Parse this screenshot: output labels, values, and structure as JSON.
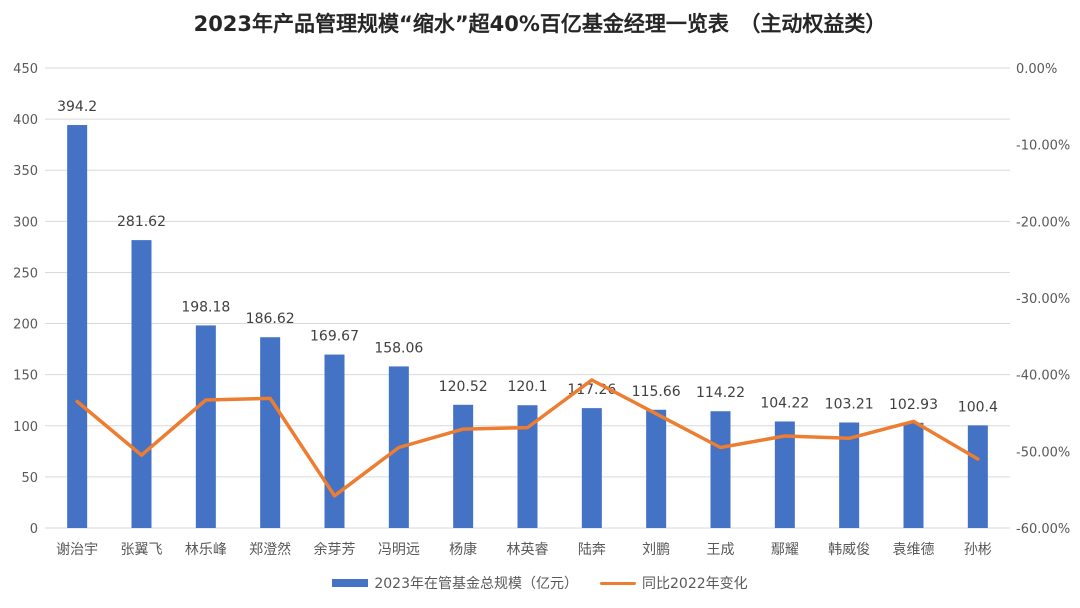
{
  "chart_data": {
    "type": "bar",
    "title": "2023年产品管理规模“缩水”超40%百亿基金经理一览表　（主动权益类）",
    "categories": [
      "谢治宇",
      "张翼飞",
      "林乐峰",
      "郑澄然",
      "余芽芳",
      "冯明远",
      "杨康",
      "林英睿",
      "陆奔",
      "刘鹏",
      "王成",
      "鄢耀",
      "韩威俊",
      "袁维德",
      "孙彬"
    ],
    "series": [
      {
        "name": "2023年在管基金总规模（亿元）",
        "type": "bar",
        "axis": "left",
        "values": [
          394.2,
          281.62,
          198.18,
          186.62,
          169.67,
          158.06,
          120.52,
          120.1,
          117.26,
          115.66,
          114.22,
          104.22,
          103.21,
          102.93,
          100.4
        ],
        "labels": [
          "394.2",
          "281.62",
          "198.18",
          "186.62",
          "169.67",
          "158.06",
          "120.52",
          "120.1",
          "117.26",
          "115.66",
          "114.22",
          "104.22",
          "103.21",
          "102.93",
          "100.4"
        ]
      },
      {
        "name": "同比2022年变化",
        "type": "line",
        "axis": "right",
        "values": [
          -43.5,
          -50.5,
          -43.3,
          -43.1,
          -55.8,
          -49.5,
          -47.1,
          -46.9,
          -40.7,
          -45.1,
          -49.5,
          -48.0,
          -48.3,
          -46.1,
          -51.0
        ]
      }
    ],
    "y_left": {
      "ylim": [
        0,
        450
      ],
      "ticks": [
        "0",
        "50",
        "100",
        "150",
        "200",
        "250",
        "300",
        "350",
        "400",
        "450"
      ]
    },
    "y_right": {
      "ylim": [
        -60,
        0
      ],
      "ticks": [
        "-60.00%",
        "-50.00%",
        "-40.00%",
        "-30.00%",
        "-20.00%",
        "-10.00%",
        "0.00%"
      ]
    },
    "grid": true,
    "legend_position": "bottom"
  },
  "colors": {
    "bar": "#4472C4",
    "line": "#ED7D31",
    "grid": "#D9D9D9"
  }
}
